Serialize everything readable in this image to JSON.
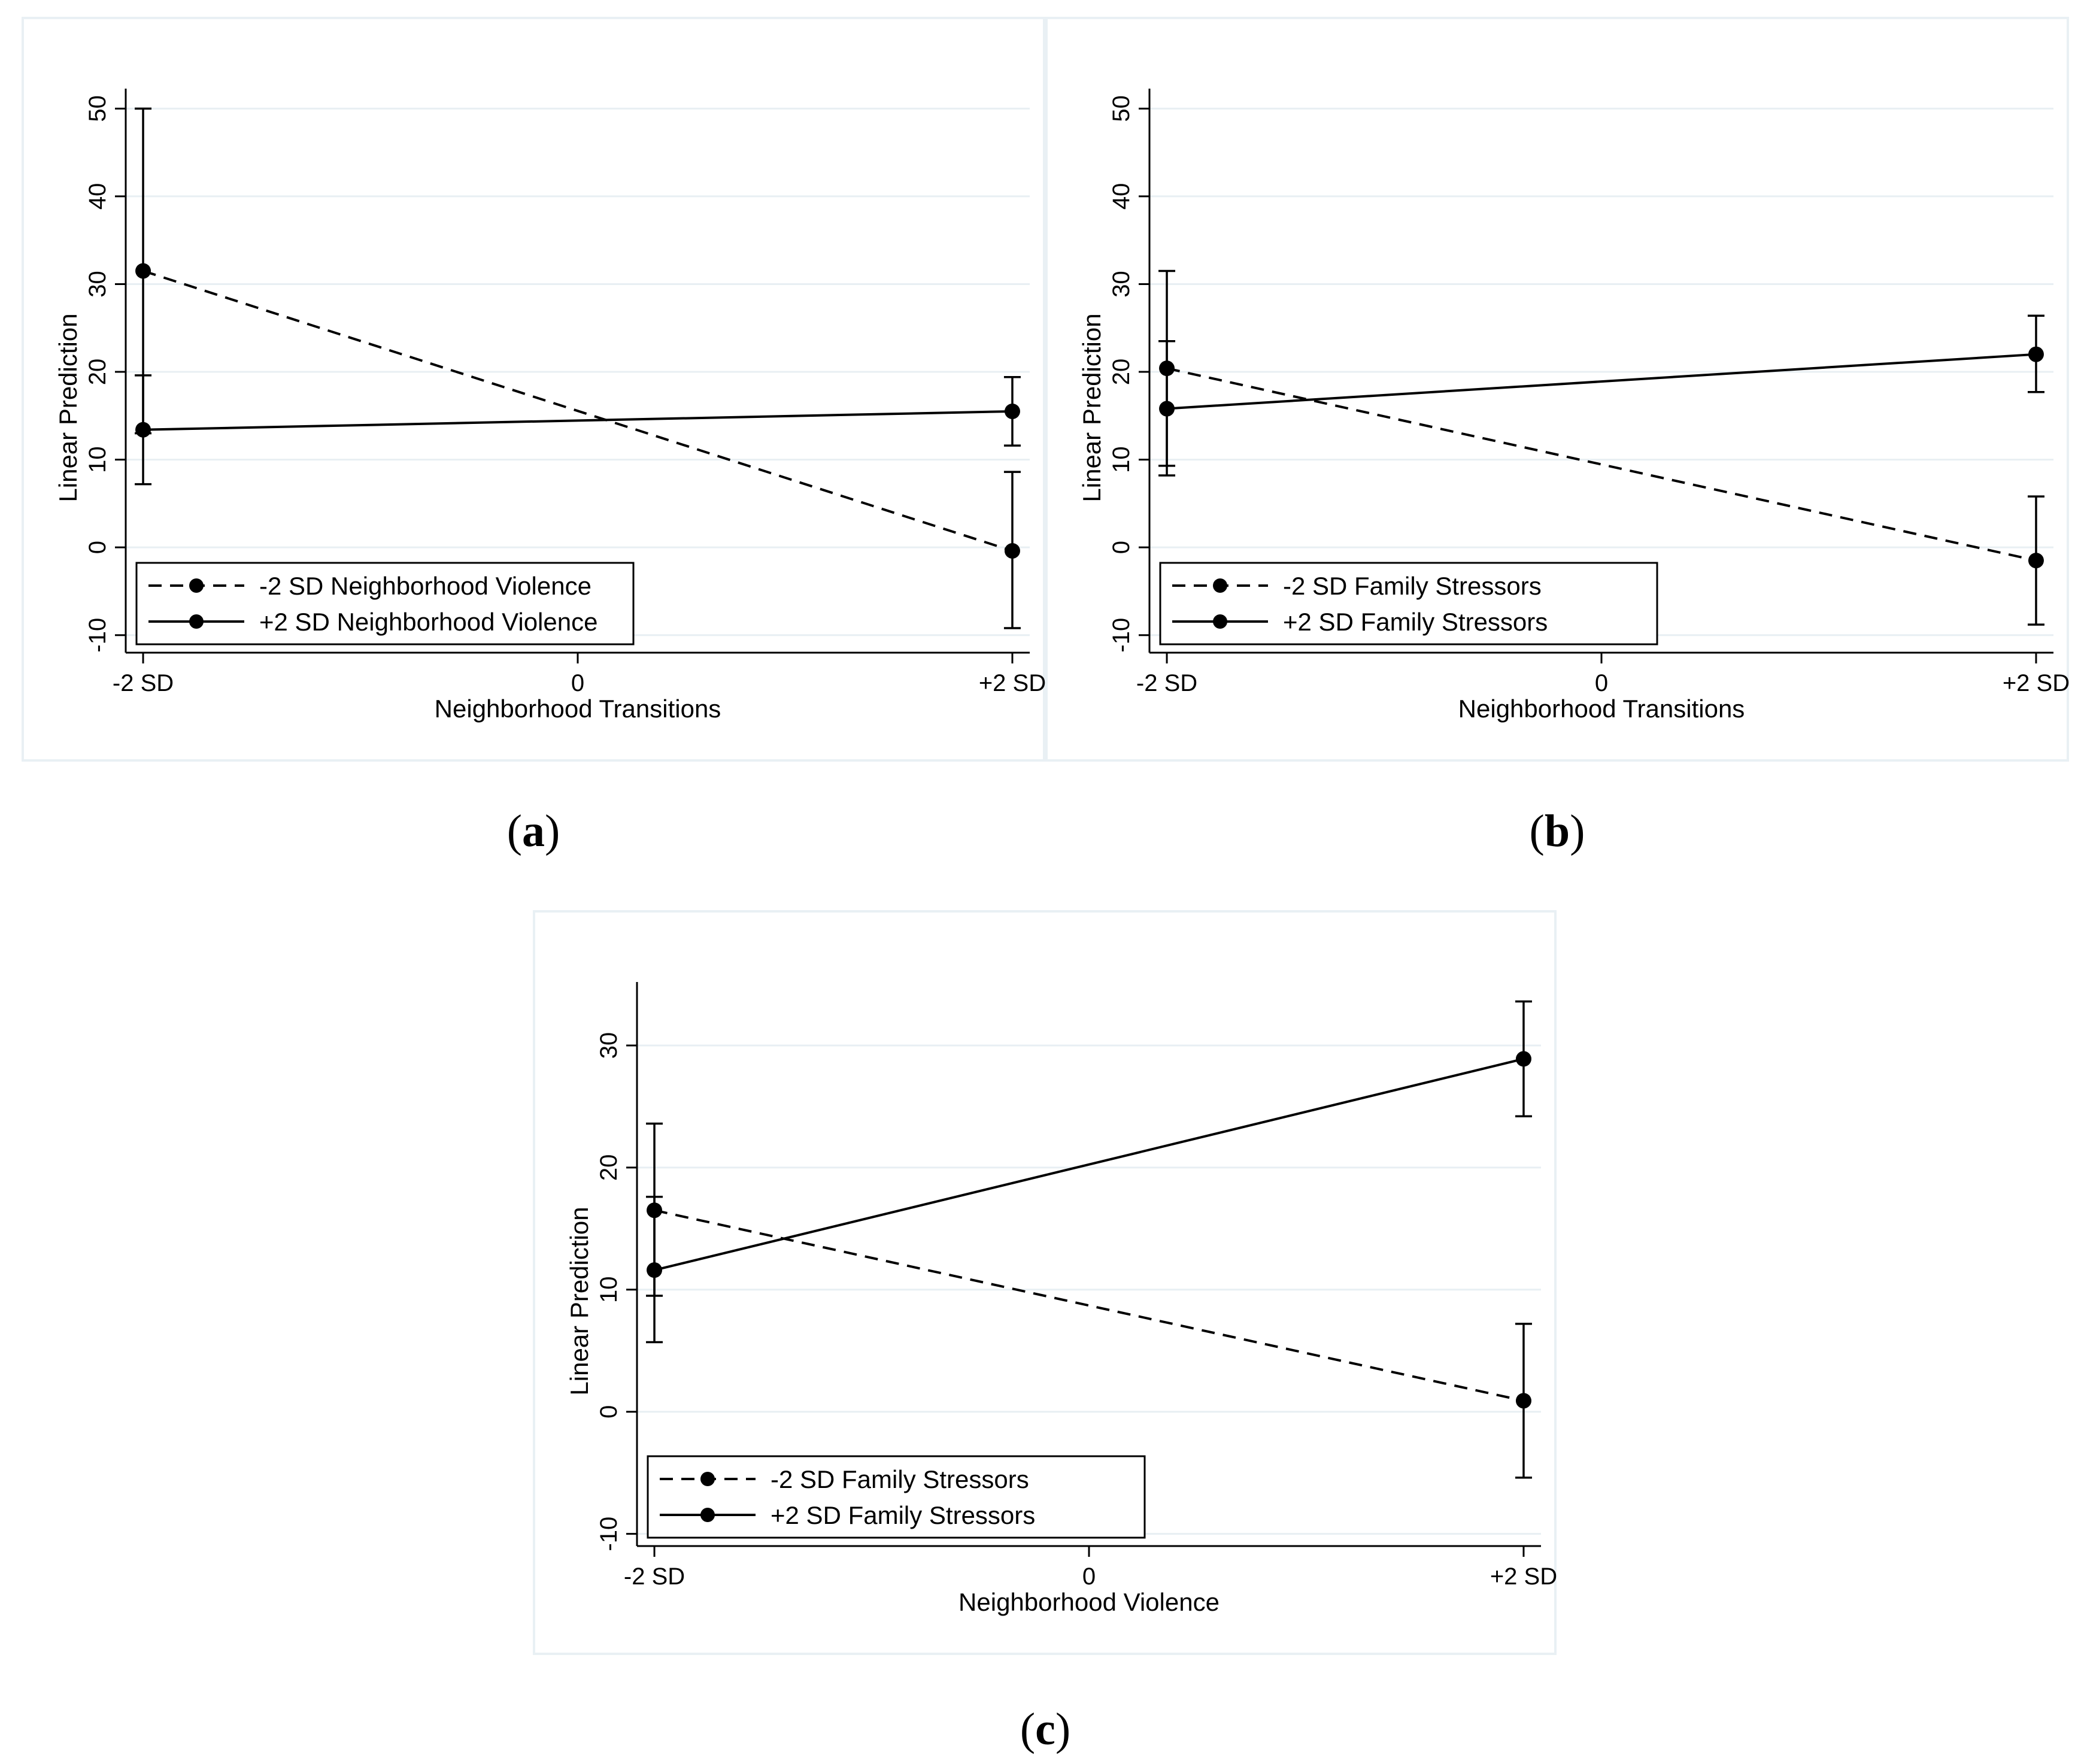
{
  "captions": [
    "a",
    "b",
    "c"
  ],
  "colors": {
    "line": "#000000",
    "grid": "#e8eff3",
    "frame": "#e9f0f4"
  },
  "chart_data": [
    {
      "id": "a",
      "type": "line",
      "xlabel": "Neighborhood Transitions",
      "ylabel": "Linear Prediction",
      "x_ticks": [
        "-2 SD",
        "0",
        "+2 SD"
      ],
      "x_tick_values": [
        -2,
        0,
        2
      ],
      "xlim": [
        -2.08,
        2.08
      ],
      "ylim": [
        -12,
        52
      ],
      "y_ticks": [
        -10,
        0,
        10,
        20,
        30,
        40,
        50
      ],
      "grid": true,
      "legend_position": "bottom-left",
      "series": [
        {
          "name": "-2 SD Neighborhood Violence",
          "style": "dashed",
          "x": [
            -2,
            2
          ],
          "y": [
            31.5,
            -0.4
          ],
          "ci_low": [
            13.0,
            -9.2
          ],
          "ci_high": [
            50.0,
            8.6
          ]
        },
        {
          "name": "+2 SD Neighborhood Violence",
          "style": "solid",
          "x": [
            -2,
            2
          ],
          "y": [
            13.4,
            15.5
          ],
          "ci_low": [
            7.2,
            11.6
          ],
          "ci_high": [
            19.6,
            19.4
          ]
        }
      ]
    },
    {
      "id": "b",
      "type": "line",
      "xlabel": "Neighborhood Transitions",
      "ylabel": "Linear Prediction",
      "x_ticks": [
        "-2 SD",
        "0",
        "+2 SD"
      ],
      "x_tick_values": [
        -2,
        0,
        2
      ],
      "xlim": [
        -2.08,
        2.08
      ],
      "ylim": [
        -12,
        52
      ],
      "y_ticks": [
        -10,
        0,
        10,
        20,
        30,
        40,
        50
      ],
      "grid": true,
      "legend_position": "bottom-left",
      "series": [
        {
          "name": "-2 SD Family Stressors",
          "style": "dashed",
          "x": [
            -2,
            2
          ],
          "y": [
            20.4,
            -1.5
          ],
          "ci_low": [
            9.3,
            -8.8
          ],
          "ci_high": [
            31.5,
            5.8
          ]
        },
        {
          "name": "+2 SD Family Stressors",
          "style": "solid",
          "x": [
            -2,
            2
          ],
          "y": [
            15.8,
            22.0
          ],
          "ci_low": [
            8.2,
            17.7
          ],
          "ci_high": [
            23.5,
            26.4
          ]
        }
      ]
    },
    {
      "id": "c",
      "type": "line",
      "xlabel": "Neighborhood Violence",
      "ylabel": "Linear Prediction",
      "x_ticks": [
        "-2 SD",
        "0",
        "+2 SD"
      ],
      "x_tick_values": [
        -2,
        0,
        2
      ],
      "xlim": [
        -2.08,
        2.08
      ],
      "ylim": [
        -11,
        35
      ],
      "y_ticks": [
        -10,
        0,
        10,
        20,
        30
      ],
      "grid": true,
      "legend_position": "bottom-left",
      "series": [
        {
          "name": "-2 SD Family Stressors",
          "style": "dashed",
          "x": [
            -2,
            2
          ],
          "y": [
            16.5,
            0.9
          ],
          "ci_low": [
            9.5,
            -5.4
          ],
          "ci_high": [
            23.6,
            7.2
          ]
        },
        {
          "name": "+2 SD Family Stressors",
          "style": "solid",
          "x": [
            -2,
            2
          ],
          "y": [
            11.6,
            28.9
          ],
          "ci_low": [
            5.7,
            24.2
          ],
          "ci_high": [
            17.6,
            33.6
          ]
        }
      ]
    }
  ]
}
